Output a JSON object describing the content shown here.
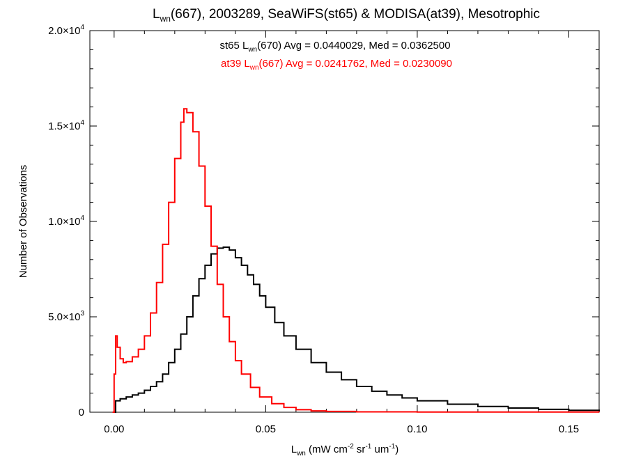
{
  "chart_data": {
    "type": "line",
    "title": {
      "base": "L",
      "sub": "wn",
      "rest": "(667), 2003289, SeaWiFS(st65) & MODISA(at39), Mesotrophic"
    },
    "xlabel": {
      "base": "L",
      "sub": "wn",
      "rest": " (mW cm",
      "sup1": "-2",
      "mid": " sr",
      "sup2": "-1",
      "mid2": " um",
      "sup3": "-1",
      "end": ")"
    },
    "ylabel": "Number of Observations",
    "xlim": [
      -0.008,
      0.16
    ],
    "ylim": [
      0,
      20000
    ],
    "xticks": [
      {
        "value": 0.0,
        "label": "0.00"
      },
      {
        "value": 0.05,
        "label": "0.05"
      },
      {
        "value": 0.1,
        "label": "0.10"
      },
      {
        "value": 0.15,
        "label": "0.15"
      }
    ],
    "yticks": [
      {
        "value": 0,
        "label": "0",
        "mant": "",
        "exp": ""
      },
      {
        "value": 5000,
        "label": "",
        "mant": "5.0×10",
        "exp": "3"
      },
      {
        "value": 10000,
        "label": "",
        "mant": "1.0×10",
        "exp": "4"
      },
      {
        "value": 15000,
        "label": "",
        "mant": "1.5×10",
        "exp": "4"
      },
      {
        "value": 20000,
        "label": "",
        "mant": "2.0×10",
        "exp": "4"
      }
    ],
    "legend_placement": "top-center",
    "series": [
      {
        "color": "#000000",
        "legend": {
          "pre": "st65 L",
          "sub": "wn",
          "post": "(670) Avg = 0.0440029, Med = 0.0362500"
        },
        "points": [
          [
            0.0,
            0
          ],
          [
            0.0005,
            600
          ],
          [
            0.002,
            700
          ],
          [
            0.004,
            800
          ],
          [
            0.006,
            900
          ],
          [
            0.008,
            1000
          ],
          [
            0.01,
            1150
          ],
          [
            0.012,
            1350
          ],
          [
            0.014,
            1600
          ],
          [
            0.016,
            2000
          ],
          [
            0.018,
            2600
          ],
          [
            0.02,
            3300
          ],
          [
            0.022,
            4100
          ],
          [
            0.024,
            5000
          ],
          [
            0.026,
            6100
          ],
          [
            0.028,
            7000
          ],
          [
            0.03,
            7700
          ],
          [
            0.032,
            8300
          ],
          [
            0.034,
            8600
          ],
          [
            0.036,
            8650
          ],
          [
            0.038,
            8500
          ],
          [
            0.04,
            8100
          ],
          [
            0.042,
            7700
          ],
          [
            0.044,
            7200
          ],
          [
            0.046,
            6700
          ],
          [
            0.048,
            6100
          ],
          [
            0.05,
            5500
          ],
          [
            0.053,
            4700
          ],
          [
            0.056,
            4000
          ],
          [
            0.06,
            3300
          ],
          [
            0.065,
            2600
          ],
          [
            0.07,
            2100
          ],
          [
            0.075,
            1700
          ],
          [
            0.08,
            1350
          ],
          [
            0.085,
            1100
          ],
          [
            0.09,
            900
          ],
          [
            0.095,
            750
          ],
          [
            0.1,
            600
          ],
          [
            0.11,
            420
          ],
          [
            0.12,
            300
          ],
          [
            0.13,
            220
          ],
          [
            0.14,
            150
          ],
          [
            0.15,
            100
          ],
          [
            0.16,
            60
          ]
        ]
      },
      {
        "color": "#ff0000",
        "legend": {
          "pre": "at39 L",
          "sub": "wn",
          "post": "(667) Avg = 0.0241762, Med = 0.0230090"
        },
        "points": [
          [
            -0.0005,
            0
          ],
          [
            0.0,
            2000
          ],
          [
            0.0005,
            4000
          ],
          [
            0.001,
            3400
          ],
          [
            0.002,
            2800
          ],
          [
            0.003,
            2600
          ],
          [
            0.004,
            2650
          ],
          [
            0.006,
            2900
          ],
          [
            0.008,
            3300
          ],
          [
            0.01,
            4000
          ],
          [
            0.012,
            5200
          ],
          [
            0.014,
            6800
          ],
          [
            0.016,
            8800
          ],
          [
            0.018,
            11000
          ],
          [
            0.02,
            13300
          ],
          [
            0.022,
            15200
          ],
          [
            0.023,
            15900
          ],
          [
            0.024,
            15700
          ],
          [
            0.026,
            14700
          ],
          [
            0.028,
            12900
          ],
          [
            0.03,
            10800
          ],
          [
            0.032,
            8700
          ],
          [
            0.034,
            6700
          ],
          [
            0.036,
            5000
          ],
          [
            0.038,
            3700
          ],
          [
            0.04,
            2700
          ],
          [
            0.042,
            2000
          ],
          [
            0.045,
            1300
          ],
          [
            0.048,
            800
          ],
          [
            0.052,
            450
          ],
          [
            0.056,
            250
          ],
          [
            0.06,
            130
          ],
          [
            0.065,
            70
          ],
          [
            0.07,
            40
          ],
          [
            0.08,
            20
          ],
          [
            0.1,
            10
          ],
          [
            0.16,
            0
          ]
        ]
      }
    ]
  }
}
